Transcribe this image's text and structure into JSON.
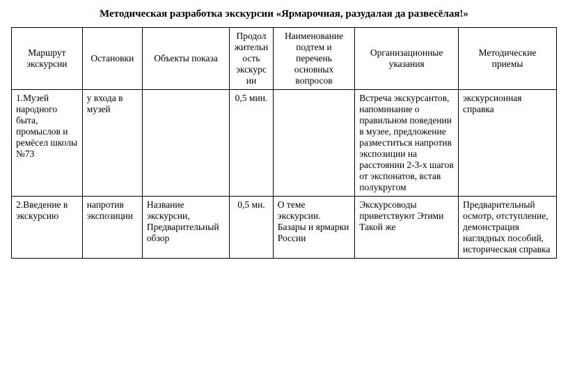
{
  "title": "Методическая разработка экскурсии «Ярмарочная, разудалая да развесёлая!»",
  "headers": {
    "route": "Маршрут экскурсии",
    "stops": "Остановки",
    "objects": "Объекты показа",
    "duration": "Продолжительность экскурсии",
    "subtopics": "Наименование подтем и перечень основных вопросов",
    "instructions": "Организационные указания",
    "methods": "Методические приемы"
  },
  "rows": [
    {
      "route": "1.Музей народного быта, промыслов и ремёсел школы №73",
      "stops": "у входа в музей",
      "objects": "",
      "duration": "0,5 мин.",
      "subtopics": "",
      "instructions": "Встреча экскурсантов, напоминание о правильном поведении в музее, предложение разместиться напротив экспозиции на расстоянии 2-3-х шагов от экспонатов, встав полукругом",
      "methods": "экскурсионная справка"
    },
    {
      "route": "2.Введение в экскурсию",
      "stops": "напротив экспозиции",
      "objects": "Название экскурсии, Предварительный обзор",
      "duration": "0,5 мн.",
      "subtopics": "О теме экскурсии. Базары и ярмарки России",
      "instructions": "Экскурсоводы приветствуют Этими Такой же",
      "methods": "Предварительный осмотр, отступление, демонстрация наглядных пособий, историческая справка"
    }
  ]
}
